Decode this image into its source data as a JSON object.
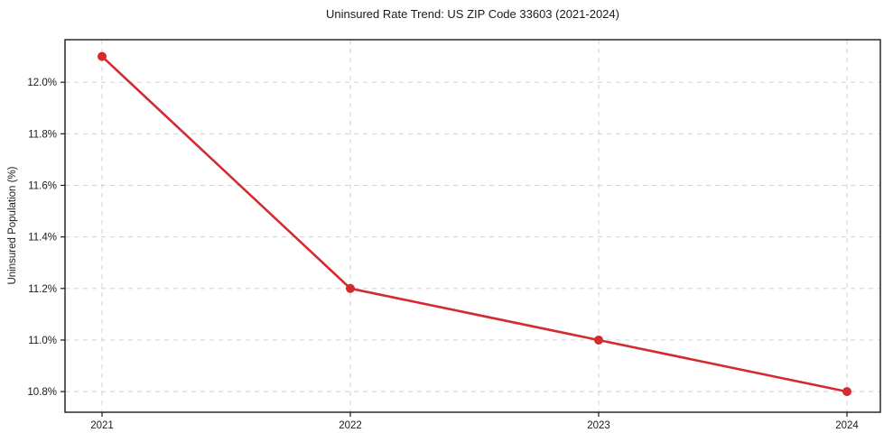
{
  "chart_data": {
    "type": "line",
    "title": "Uninsured Rate Trend: US ZIP Code 33603 (2021-2024)",
    "xlabel": "",
    "ylabel": "Uninsured Population (%)",
    "series": [
      {
        "name": "Uninsured rate",
        "x": [
          2021,
          2022,
          2023,
          2024
        ],
        "values": [
          12.1,
          11.2,
          11.0,
          10.8
        ]
      }
    ],
    "x_tick_labels": [
      "2021",
      "2022",
      "2023",
      "2024"
    ],
    "y_ticks": [
      10.8,
      11.0,
      11.2,
      11.4,
      11.6,
      11.8,
      12.0
    ],
    "y_tick_labels": [
      "10.8%",
      "11.0%",
      "11.2%",
      "11.4%",
      "11.6%",
      "11.8%",
      "12.0%"
    ],
    "ylim": [
      10.72,
      12.165
    ],
    "grid": true,
    "legend": "none",
    "colors": {
      "line": "#d32b30",
      "marker": "#d32b30",
      "grid": "#cccccc",
      "spine": "#1a1a1a",
      "background": "#ffffff"
    }
  }
}
